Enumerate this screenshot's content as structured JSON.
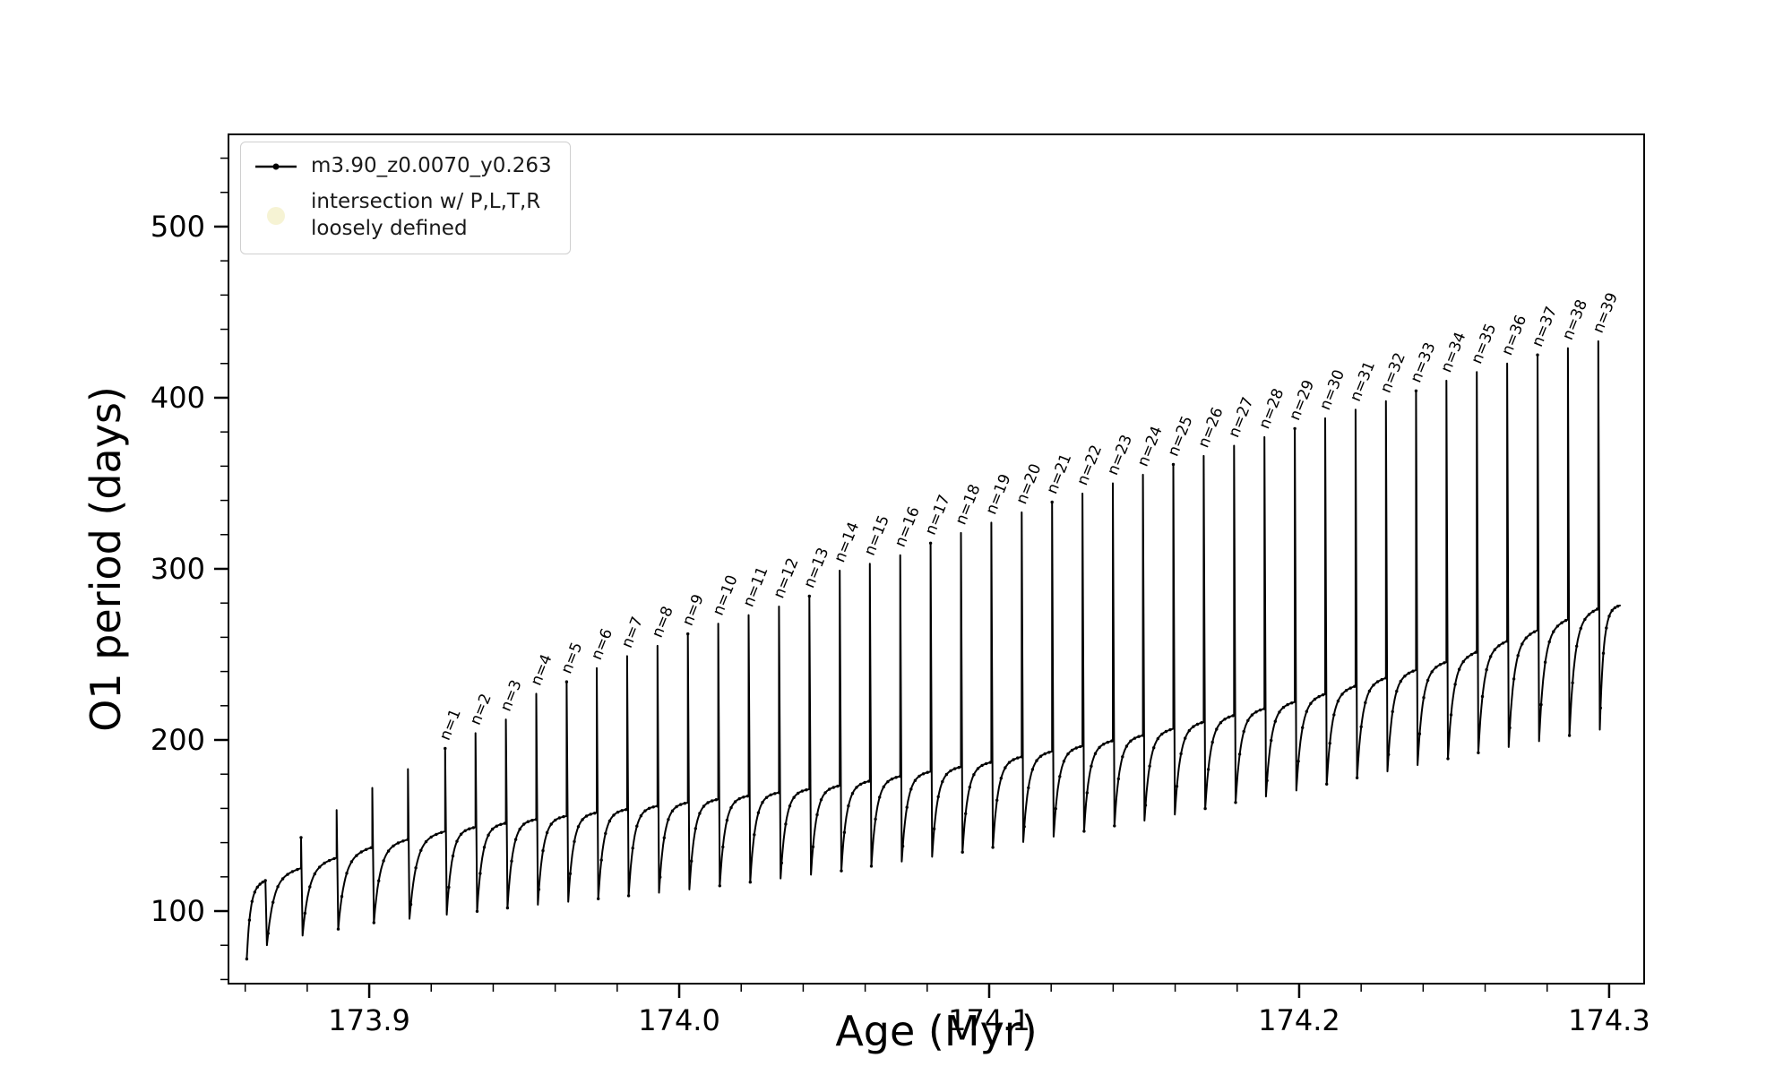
{
  "chart_data": {
    "type": "line",
    "title": "",
    "xlabel": "Age (Myr)",
    "ylabel": "O1 period (days)",
    "xlim": [
      173.8546,
      174.3113
    ],
    "ylim": [
      57.6,
      553.9
    ],
    "xticks": [
      173.9,
      174.0,
      174.1,
      174.2,
      174.3
    ],
    "xtick_labels": [
      "173.9",
      "174.0",
      "174.1",
      "174.2",
      "174.3"
    ],
    "yticks": [
      100,
      200,
      300,
      400,
      500
    ],
    "ytick_labels": [
      "100",
      "200",
      "300",
      "400",
      "500"
    ],
    "x_minor_step": 0.02,
    "y_minor_step": 20,
    "grid": false,
    "line_color": "#000000",
    "legend": {
      "position": "upper-left",
      "entries": [
        {
          "marker": "line-dot",
          "color": "#000000",
          "label": "m3.90_z0.0070_y0.263"
        },
        {
          "marker": "circle",
          "color": "#eee8aa",
          "label": "intersection w/ P,L,T,R\nloosely defined"
        }
      ]
    },
    "data_x_start": 173.8605,
    "data_x_end": 174.3035,
    "start_value": 72,
    "plateau_envelope": [
      [
        173.8546,
        108
      ],
      [
        173.87,
        121
      ],
      [
        173.9,
        137
      ],
      [
        173.925,
        147
      ],
      [
        173.95,
        153
      ],
      [
        174.0,
        163
      ],
      [
        174.05,
        173
      ],
      [
        174.1,
        187
      ],
      [
        174.15,
        203
      ],
      [
        174.2,
        223
      ],
      [
        174.25,
        247
      ],
      [
        174.2965,
        277
      ],
      [
        174.3113,
        281
      ]
    ],
    "min_envelope": [
      [
        173.8546,
        70
      ],
      [
        173.87,
        83
      ],
      [
        173.9,
        93
      ],
      [
        173.925,
        98
      ],
      [
        173.95,
        103
      ],
      [
        174.0,
        112
      ],
      [
        174.05,
        123
      ],
      [
        174.1,
        137
      ],
      [
        174.15,
        153
      ],
      [
        174.2,
        171
      ],
      [
        174.25,
        190
      ],
      [
        174.2965,
        206
      ],
      [
        174.3113,
        210
      ]
    ],
    "spikes": [
      {
        "label": "",
        "x": 173.8665,
        "peak": 118
      },
      {
        "label": "",
        "x": 173.878,
        "peak": 143
      },
      {
        "label": "",
        "x": 173.8895,
        "peak": 159
      },
      {
        "label": "",
        "x": 173.901,
        "peak": 172
      },
      {
        "label": "",
        "x": 173.9125,
        "peak": 183
      },
      {
        "label": "n=1",
        "x": 173.9245,
        "peak": 195
      },
      {
        "label": "n=2",
        "x": 173.9343,
        "peak": 204
      },
      {
        "label": "n=3",
        "x": 173.9441,
        "peak": 212
      },
      {
        "label": "n=4",
        "x": 173.9539,
        "peak": 227
      },
      {
        "label": "n=5",
        "x": 173.9637,
        "peak": 234
      },
      {
        "label": "n=6",
        "x": 173.9734,
        "peak": 242
      },
      {
        "label": "n=7",
        "x": 173.9832,
        "peak": 249
      },
      {
        "label": "n=8",
        "x": 173.993,
        "peak": 255
      },
      {
        "label": "n=9",
        "x": 174.0028,
        "peak": 262
      },
      {
        "label": "n=10",
        "x": 174.0126,
        "peak": 268
      },
      {
        "label": "n=11",
        "x": 174.0224,
        "peak": 273
      },
      {
        "label": "n=12",
        "x": 174.0322,
        "peak": 278
      },
      {
        "label": "n=13",
        "x": 174.042,
        "peak": 284
      },
      {
        "label": "n=14",
        "x": 174.0518,
        "peak": 299
      },
      {
        "label": "n=15",
        "x": 174.0615,
        "peak": 303
      },
      {
        "label": "n=16",
        "x": 174.0713,
        "peak": 308
      },
      {
        "label": "n=17",
        "x": 174.0811,
        "peak": 315
      },
      {
        "label": "n=18",
        "x": 174.0909,
        "peak": 321
      },
      {
        "label": "n=19",
        "x": 174.1007,
        "peak": 327
      },
      {
        "label": "n=20",
        "x": 174.1105,
        "peak": 333
      },
      {
        "label": "n=21",
        "x": 174.1203,
        "peak": 339
      },
      {
        "label": "n=22",
        "x": 174.1301,
        "peak": 344
      },
      {
        "label": "n=23",
        "x": 174.1399,
        "peak": 350
      },
      {
        "label": "n=24",
        "x": 174.1496,
        "peak": 355
      },
      {
        "label": "n=25",
        "x": 174.1594,
        "peak": 361
      },
      {
        "label": "n=26",
        "x": 174.1692,
        "peak": 366
      },
      {
        "label": "n=27",
        "x": 174.179,
        "peak": 372
      },
      {
        "label": "n=28",
        "x": 174.1888,
        "peak": 377
      },
      {
        "label": "n=29",
        "x": 174.1986,
        "peak": 382
      },
      {
        "label": "n=30",
        "x": 174.2084,
        "peak": 388
      },
      {
        "label": "n=31",
        "x": 174.2182,
        "peak": 393
      },
      {
        "label": "n=32",
        "x": 174.228,
        "peak": 398
      },
      {
        "label": "n=33",
        "x": 174.2377,
        "peak": 404
      },
      {
        "label": "n=34",
        "x": 174.2475,
        "peak": 410
      },
      {
        "label": "n=35",
        "x": 174.2573,
        "peak": 415
      },
      {
        "label": "n=36",
        "x": 174.2671,
        "peak": 420
      },
      {
        "label": "n=37",
        "x": 174.2769,
        "peak": 425
      },
      {
        "label": "n=38",
        "x": 174.2867,
        "peak": 429
      },
      {
        "label": "n=39",
        "x": 174.2965,
        "peak": 433
      }
    ]
  }
}
